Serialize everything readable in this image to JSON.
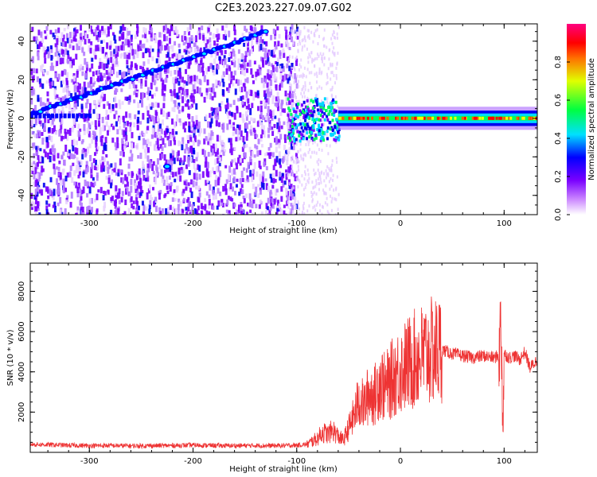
{
  "title": "C2E3.2023.227.09.07.G02",
  "chart_data": [
    {
      "type": "heatmap",
      "xlabel": "Height of straight line (km)",
      "ylabel": "Frequency (Hz)",
      "xlim": [
        -357,
        132
      ],
      "ylim": [
        -50,
        49
      ],
      "xticks": [
        -300,
        -200,
        -100,
        0,
        100
      ],
      "yticks": [
        -40,
        -20,
        0,
        20,
        40
      ],
      "colorbar": {
        "label": "Normalized spectral amplitude",
        "range": [
          0.0,
          1.0
        ],
        "ticks": [
          0.0,
          0.2,
          0.4,
          0.6,
          0.8
        ],
        "colormap": [
          "#ffffff",
          "#8000ff",
          "#0000ff",
          "#00ffff",
          "#00ff00",
          "#ffff00",
          "#ff0000",
          "#ff0080"
        ]
      },
      "features": [
        {
          "kind": "drifting-line",
          "x": [
            -357,
            -130
          ],
          "y": [
            2,
            45
          ],
          "amplitude": 0.3
        },
        {
          "kind": "band",
          "x": [
            -60,
            132
          ],
          "y": [
            -3,
            3
          ],
          "amplitude": 0.6
        },
        {
          "kind": "spot",
          "x": -225,
          "y": -25,
          "amplitude": 0.35
        }
      ]
    },
    {
      "type": "line",
      "xlabel": "Height of straight line (km)",
      "ylabel": "SNR (10 * v/v)",
      "xlim": [
        -357,
        132
      ],
      "ylim": [
        0,
        9400
      ],
      "xticks": [
        -300,
        -200,
        -100,
        0,
        100
      ],
      "yticks": [
        2000,
        4000,
        6000,
        8000
      ],
      "color": "#ee3333",
      "series": [
        {
          "x": [
            -357,
            -340,
            -320,
            -300,
            -280,
            -260,
            -240,
            -220,
            -200,
            -180,
            -160,
            -140,
            -120,
            -100,
            -90,
            -80,
            -75,
            -70,
            -65,
            -60,
            -55,
            -50,
            -45,
            -40,
            -35,
            -30,
            -25,
            -20,
            -15,
            -10,
            -5,
            0,
            10,
            20,
            30,
            40,
            50,
            60,
            70,
            80,
            90,
            95,
            97,
            99,
            100,
            105,
            110,
            115,
            120,
            125,
            132
          ],
          "y": [
            400,
            380,
            350,
            330,
            340,
            320,
            330,
            340,
            360,
            340,
            330,
            340,
            330,
            350,
            400,
            700,
            1000,
            900,
            1100,
            800,
            600,
            1200,
            1800,
            2600,
            2300,
            3000,
            2800,
            3600,
            3200,
            3500,
            3900,
            4100,
            4500,
            4800,
            5000,
            5100,
            4900,
            4800,
            4700,
            4800,
            4700,
            4800,
            6500,
            1300,
            4900,
            4700,
            4800,
            4600,
            5000,
            4200,
            4600
          ]
        }
      ]
    }
  ]
}
